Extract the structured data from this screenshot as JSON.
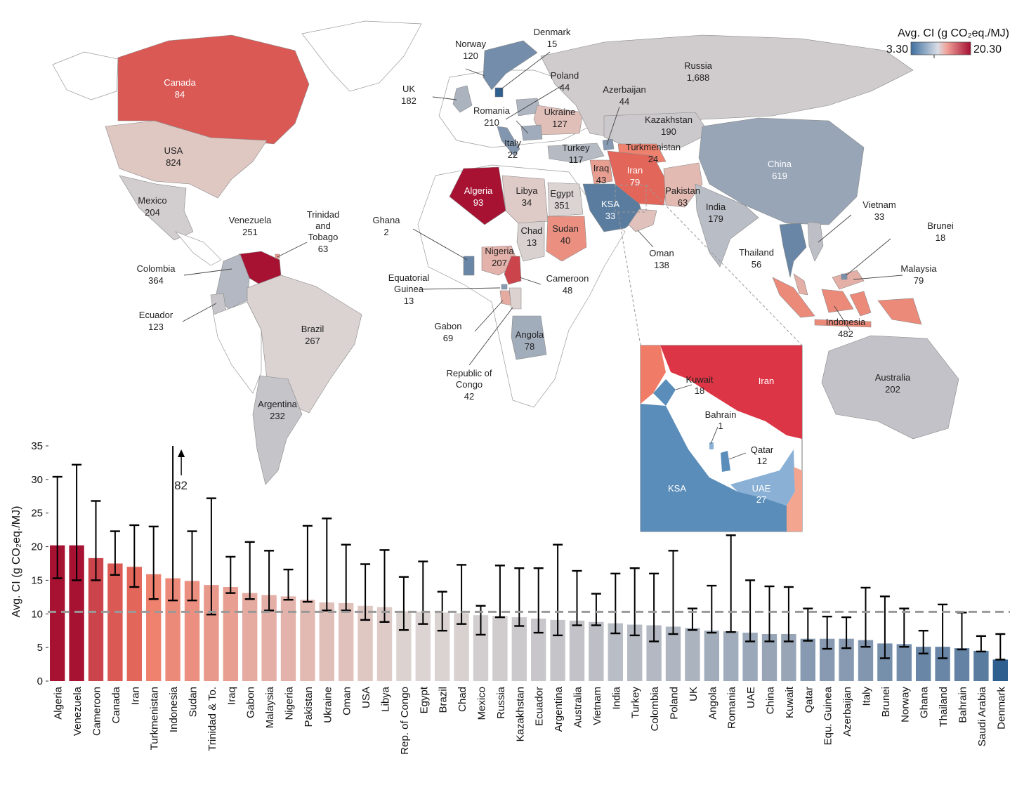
{
  "colorbar": {
    "title": "Avg. CI (g CO₂eq./MJ)",
    "min_label": "3.30",
    "max_label": "20.30",
    "low_color": "#2f5f8f",
    "mid_color": "#dcd4d2",
    "high_color": "#a50f32"
  },
  "map_labels": [
    {
      "name": "Canada",
      "value": "84"
    },
    {
      "name": "USA",
      "value": "824"
    },
    {
      "name": "Mexico",
      "value": "204"
    },
    {
      "name": "Venezuela",
      "value": "251"
    },
    {
      "name": "Trinidad and Tobago",
      "value": "63"
    },
    {
      "name": "Colombia",
      "value": "364"
    },
    {
      "name": "Ecuador",
      "value": "123"
    },
    {
      "name": "Brazil",
      "value": "267"
    },
    {
      "name": "Argentina",
      "value": "232"
    },
    {
      "name": "Norway",
      "value": "120"
    },
    {
      "name": "Denmark",
      "value": "15"
    },
    {
      "name": "UK",
      "value": "182"
    },
    {
      "name": "Poland",
      "value": "44"
    },
    {
      "name": "Romania",
      "value": "210"
    },
    {
      "name": "Ukraine",
      "value": "127"
    },
    {
      "name": "Italy",
      "value": "22"
    },
    {
      "name": "Azerbaijan",
      "value": "44"
    },
    {
      "name": "Russia",
      "value": "1,688"
    },
    {
      "name": "Kazakhstan",
      "value": "190"
    },
    {
      "name": "Turkey",
      "value": "117"
    },
    {
      "name": "Turkmenistan",
      "value": "24"
    },
    {
      "name": "Iraq",
      "value": "43"
    },
    {
      "name": "Iran",
      "value": "79"
    },
    {
      "name": "China",
      "value": "619"
    },
    {
      "name": "Pakistan",
      "value": "63"
    },
    {
      "name": "India",
      "value": "179"
    },
    {
      "name": "KSA",
      "value": "33"
    },
    {
      "name": "Oman",
      "value": "138"
    },
    {
      "name": "Algeria",
      "value": "93"
    },
    {
      "name": "Libya",
      "value": "34"
    },
    {
      "name": "Egypt",
      "value": "351"
    },
    {
      "name": "Chad",
      "value": "13"
    },
    {
      "name": "Sudan",
      "value": "40"
    },
    {
      "name": "Ghana",
      "value": "2"
    },
    {
      "name": "Nigeria",
      "value": "207"
    },
    {
      "name": "Equatorial Guinea",
      "value": "13"
    },
    {
      "name": "Cameroon",
      "value": "48"
    },
    {
      "name": "Gabon",
      "value": "69"
    },
    {
      "name": "Republic of Congo",
      "value": "42"
    },
    {
      "name": "Angola",
      "value": "78"
    },
    {
      "name": "Vietnam",
      "value": "33"
    },
    {
      "name": "Brunei",
      "value": "18"
    },
    {
      "name": "Thailand",
      "value": "56"
    },
    {
      "name": "Malaysia",
      "value": "79"
    },
    {
      "name": "Indonesia",
      "value": "482"
    },
    {
      "name": "Australia",
      "value": "202"
    }
  ],
  "inset_labels": [
    {
      "name": "Kuwait",
      "value": "18"
    },
    {
      "name": "Iran",
      "value": ""
    },
    {
      "name": "Bahrain",
      "value": "1"
    },
    {
      "name": "Qatar",
      "value": "12"
    },
    {
      "name": "KSA",
      "value": ""
    },
    {
      "name": "UAE",
      "value": "27"
    }
  ],
  "chart_data": {
    "type": "bar",
    "ylabel": "Avg. CI (g CO₂eq./MJ)",
    "ylim": [
      0,
      35
    ],
    "yticks": [
      0,
      5,
      10,
      15,
      20,
      25,
      30,
      35
    ],
    "reference_line": 10.3,
    "categories": [
      "Algeria",
      "Venezuela",
      "Cameroon",
      "Canada",
      "Iran",
      "Turkmenistan",
      "Indonesia",
      "Sudan",
      "Trinidad & To.",
      "Iraq",
      "Gabon",
      "Malaysia",
      "Nigeria",
      "Pakistan",
      "Ukraine",
      "Oman",
      "USA",
      "Libya",
      "Rep. of Congo",
      "Egypt",
      "Brazil",
      "Chad",
      "Mexico",
      "Russia",
      "Kazakhstan",
      "Ecuador",
      "Argentina",
      "Australia",
      "Vietnam",
      "India",
      "Turkey",
      "Colombia",
      "Poland",
      "UK",
      "Angola",
      "Romania",
      "UAE",
      "China",
      "Kuwait",
      "Qatar",
      "Equ. Guinea",
      "Azerbaijan",
      "Italy",
      "Brunei",
      "Norway",
      "Ghana",
      "Thailand",
      "Bahrain",
      "Saudi Arabia",
      "Denmark"
    ],
    "values": [
      20.2,
      20.2,
      18.3,
      17.5,
      17.0,
      15.9,
      15.3,
      14.9,
      14.3,
      14.0,
      13.1,
      12.8,
      12.6,
      12.1,
      11.7,
      11.6,
      11.2,
      11.0,
      10.4,
      10.3,
      10.2,
      10.1,
      9.8,
      9.7,
      9.5,
      9.3,
      9.1,
      9.0,
      8.8,
      8.6,
      8.4,
      8.3,
      8.1,
      7.9,
      7.5,
      7.4,
      7.2,
      7.0,
      7.0,
      6.3,
      6.3,
      6.3,
      6.1,
      5.6,
      5.5,
      5.1,
      5.1,
      4.9,
      4.5,
      3.2
    ],
    "err_low": [
      15.3,
      15.0,
      15.0,
      15.8,
      14.0,
      12.2,
      12.0,
      12.0,
      9.9,
      13.1,
      12.2,
      10.5,
      12.1,
      11.8,
      10.5,
      10.5,
      9.1,
      8.8,
      7.6,
      8.5,
      7.5,
      8.5,
      6.9,
      9.5,
      8.2,
      7.2,
      6.8,
      8.3,
      8.3,
      7.1,
      6.8,
      5.9,
      7.0,
      7.6,
      7.2,
      7.3,
      5.9,
      5.9,
      5.9,
      6.0,
      4.8,
      4.9,
      5.1,
      3.4,
      5.1,
      4.1,
      3.4,
      4.7,
      4.4,
      3.2
    ],
    "err_high": [
      30.4,
      32.2,
      26.8,
      22.3,
      23.2,
      23.0,
      82.0,
      22.3,
      27.2,
      18.5,
      20.7,
      19.4,
      16.6,
      23.1,
      24.2,
      20.3,
      17.4,
      19.5,
      15.5,
      17.8,
      13.3,
      17.3,
      11.2,
      17.2,
      16.8,
      16.8,
      20.3,
      16.4,
      13.0,
      16.0,
      16.8,
      16.0,
      19.4,
      10.8,
      14.2,
      21.7,
      15.0,
      14.1,
      14.0,
      10.8,
      9.6,
      9.5,
      13.9,
      12.6,
      10.8,
      7.5,
      11.4,
      10.2,
      6.7,
      7.0
    ],
    "clipped_annotation": "82"
  }
}
